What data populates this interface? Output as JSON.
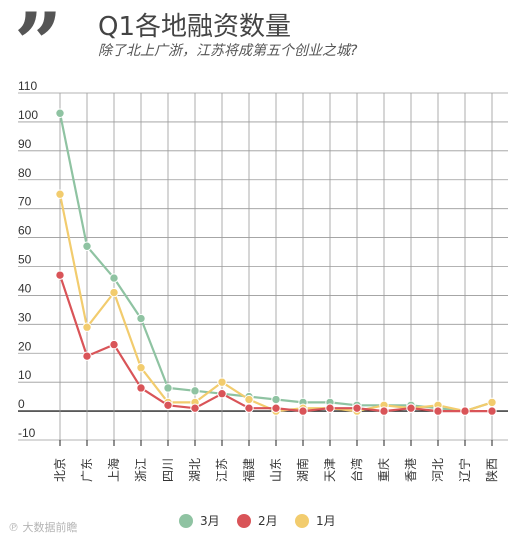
{
  "header": {
    "quote_glyph": "”",
    "title": "Q1各地融资数量",
    "subtitle": "除了北上广浙，江苏将成第五个创业之城?"
  },
  "watermark": "℗ 大数据前瞻",
  "colors": {
    "march": "#8fc3a2",
    "february": "#d95458",
    "january": "#f2cc6e",
    "grid": "#9a9a9a",
    "axis": "#222222"
  },
  "chart_data": {
    "type": "line",
    "categories": [
      "北京",
      "广东",
      "上海",
      "浙江",
      "四川",
      "湖北",
      "江苏",
      "福建",
      "山东",
      "湖南",
      "天津",
      "台湾",
      "重庆",
      "香港",
      "河北",
      "辽宁",
      "陕西"
    ],
    "series": [
      {
        "name": "3月",
        "color": "#8fc3a2",
        "values": [
          103,
          57,
          46,
          32,
          8,
          7,
          6,
          5,
          4,
          3,
          3,
          2,
          2,
          2,
          1,
          0,
          3
        ]
      },
      {
        "name": "1月",
        "color": "#f2cc6e",
        "values": [
          75,
          29,
          41,
          15,
          3,
          3,
          10,
          4,
          0,
          1,
          1,
          0,
          2,
          1,
          2,
          0,
          3
        ]
      },
      {
        "name": "2月",
        "color": "#d95458",
        "values": [
          47,
          19,
          23,
          8,
          2,
          1,
          6,
          1,
          1,
          0,
          1,
          1,
          0,
          1,
          0,
          0,
          0
        ]
      }
    ],
    "legend": [
      {
        "name": "3月",
        "color": "#8fc3a2"
      },
      {
        "name": "2月",
        "color": "#d95458"
      },
      {
        "name": "1月",
        "color": "#f2cc6e"
      }
    ],
    "ylim": [
      -10,
      110
    ],
    "yticks": [
      -10,
      0,
      10,
      20,
      30,
      40,
      50,
      60,
      70,
      80,
      90,
      100,
      110
    ],
    "grid": true,
    "legend_position": "bottom-center"
  }
}
